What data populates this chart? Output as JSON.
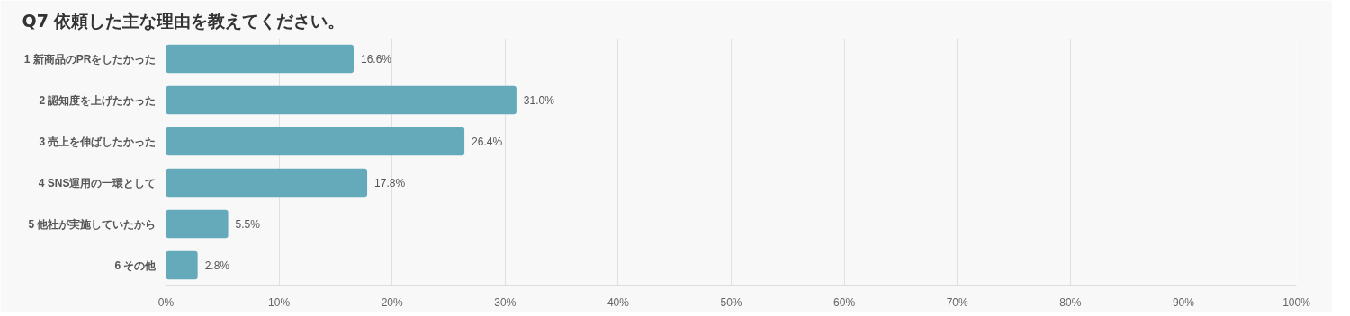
{
  "chart_data": {
    "type": "bar",
    "orientation": "horizontal",
    "title": "Q7 依頼した主な理由を教えてください。",
    "categories": [
      "1 新商品のPRをしたかった",
      "2 認知度を上げたかった",
      "3 売上を伸ばしたかった",
      "4 SNS運用の一環として",
      "5 他社が実施していたから",
      "6 その他"
    ],
    "values": [
      16.6,
      31.0,
      26.4,
      17.8,
      5.5,
      2.8
    ],
    "value_labels": [
      "16.6%",
      "31.0%",
      "26.4%",
      "17.8%",
      "5.5%",
      "2.8%"
    ],
    "color": "#64aabb",
    "xlim": [
      0,
      100
    ],
    "xticks": [
      {
        "value": 0,
        "label": "0%"
      },
      {
        "value": 10,
        "label": "10%"
      },
      {
        "value": 20,
        "label": "20%"
      },
      {
        "value": 30,
        "label": "30%"
      },
      {
        "value": 40,
        "label": "40%"
      },
      {
        "value": 50,
        "label": "50%"
      },
      {
        "value": 60,
        "label": "60%"
      },
      {
        "value": 70,
        "label": "70%"
      },
      {
        "value": 80,
        "label": "80%"
      },
      {
        "value": 90,
        "label": "90%"
      },
      {
        "value": 100,
        "label": "100%"
      }
    ],
    "grid": "x"
  }
}
